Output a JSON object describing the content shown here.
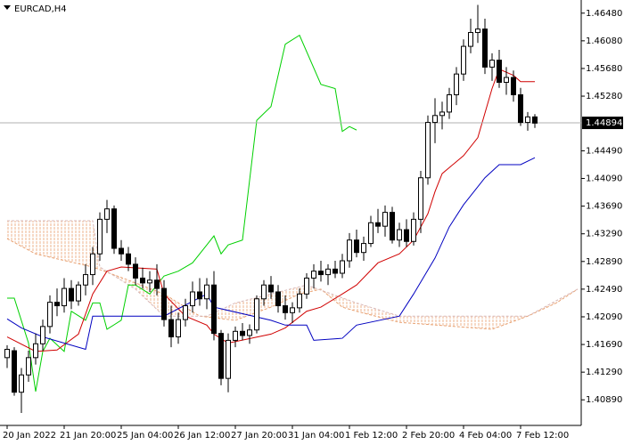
{
  "chart_data": {
    "type": "candlestick",
    "title": "EURCAD,H4",
    "ylim": [
      1.4052,
      1.4667
    ],
    "yticks": [
      {
        "value": 1.4648,
        "label": "1.46480"
      },
      {
        "value": 1.4608,
        "label": "1.46080"
      },
      {
        "value": 1.4568,
        "label": "1.45680"
      },
      {
        "value": 1.4528,
        "label": "1.45280"
      },
      {
        "value": 1.4449,
        "label": "1.44490"
      },
      {
        "value": 1.4409,
        "label": "1.44090"
      },
      {
        "value": 1.4369,
        "label": "1.43690"
      },
      {
        "value": 1.4329,
        "label": "1.43290"
      },
      {
        "value": 1.4289,
        "label": "1.42890"
      },
      {
        "value": 1.4249,
        "label": "1.42490"
      },
      {
        "value": 1.4209,
        "label": "1.42090"
      },
      {
        "value": 1.4169,
        "label": "1.41690"
      },
      {
        "value": 1.4129,
        "label": "1.41290"
      },
      {
        "value": 1.4089,
        "label": "1.40890"
      }
    ],
    "xticks": [
      {
        "value": 0,
        "label": "20 Jan 2022"
      },
      {
        "value": 8,
        "label": "21 Jan 20:00"
      },
      {
        "value": 16,
        "label": "25 Jan 04:00"
      },
      {
        "value": 24,
        "label": "26 Jan 12:00"
      },
      {
        "value": 32,
        "label": "27 Jan 20:00"
      },
      {
        "value": 40,
        "label": "31 Jan 04:00"
      },
      {
        "value": 48,
        "label": "1 Feb 12:00"
      },
      {
        "value": 56,
        "label": "2 Feb 20:00"
      },
      {
        "value": 64,
        "label": "4 Feb 04:00"
      },
      {
        "value": 72,
        "label": "7 Feb 12:00"
      }
    ],
    "last_price": {
      "value": 1.44894,
      "label": "1.44894"
    },
    "bull_color": "#ffffff",
    "bear_color": "#000000",
    "candles": {
      "open": [
        1.415,
        1.416,
        1.41,
        1.4125,
        1.415,
        1.417,
        1.4195,
        1.423,
        1.4225,
        1.425,
        1.4232,
        1.4255,
        1.427,
        1.43,
        1.435,
        1.4365,
        1.4308,
        1.43,
        1.4285,
        1.4265,
        1.4258,
        1.4262,
        1.425,
        1.4205,
        1.418,
        1.4205,
        1.4225,
        1.4245,
        1.4235,
        1.4255,
        1.4185,
        1.412,
        1.4175,
        1.4188,
        1.4182,
        1.419,
        1.4235,
        1.4255,
        1.4245,
        1.4225,
        1.4215,
        1.4222,
        1.4242,
        1.4265,
        1.4275,
        1.427,
        1.4278,
        1.4272,
        1.429,
        1.432,
        1.4302,
        1.4315,
        1.4345,
        1.434,
        1.436,
        1.432,
        1.4335,
        1.4318,
        1.435,
        1.441,
        1.449,
        1.45,
        1.4505,
        1.453,
        1.456,
        1.46,
        1.462,
        1.4625,
        1.457,
        1.458,
        1.4548,
        1.4555,
        1.453,
        1.449,
        1.4498
      ],
      "high": [
        1.4168,
        1.4165,
        1.4135,
        1.416,
        1.4185,
        1.4205,
        1.424,
        1.425,
        1.4265,
        1.4262,
        1.426,
        1.4285,
        1.431,
        1.436,
        1.4378,
        1.437,
        1.432,
        1.431,
        1.4295,
        1.428,
        1.4275,
        1.4285,
        1.4262,
        1.4225,
        1.4215,
        1.4235,
        1.426,
        1.4265,
        1.4265,
        1.4275,
        1.419,
        1.4185,
        1.4195,
        1.42,
        1.4198,
        1.424,
        1.4262,
        1.4268,
        1.4255,
        1.424,
        1.423,
        1.425,
        1.4272,
        1.4285,
        1.429,
        1.4285,
        1.429,
        1.43,
        1.433,
        1.4335,
        1.4325,
        1.4355,
        1.4365,
        1.437,
        1.4368,
        1.4345,
        1.435,
        1.436,
        1.442,
        1.45,
        1.4525,
        1.452,
        1.454,
        1.457,
        1.461,
        1.464,
        1.466,
        1.464,
        1.459,
        1.4595,
        1.457,
        1.4565,
        1.454,
        1.4505,
        1.4502
      ],
      "low": [
        1.4135,
        1.4095,
        1.407,
        1.4115,
        1.414,
        1.416,
        1.4185,
        1.421,
        1.4215,
        1.422,
        1.4225,
        1.424,
        1.4255,
        1.429,
        1.433,
        1.43,
        1.429,
        1.4275,
        1.4255,
        1.425,
        1.4245,
        1.424,
        1.4195,
        1.4165,
        1.417,
        1.4195,
        1.4215,
        1.4225,
        1.422,
        1.4175,
        1.411,
        1.41,
        1.4165,
        1.4175,
        1.417,
        1.4185,
        1.4225,
        1.4235,
        1.4215,
        1.4205,
        1.42,
        1.4215,
        1.4235,
        1.425,
        1.426,
        1.4255,
        1.4265,
        1.4265,
        1.428,
        1.4295,
        1.429,
        1.431,
        1.433,
        1.4325,
        1.4315,
        1.431,
        1.431,
        1.4312,
        1.433,
        1.44,
        1.446,
        1.448,
        1.4495,
        1.4515,
        1.455,
        1.459,
        1.4605,
        1.456,
        1.455,
        1.454,
        1.453,
        1.452,
        1.4485,
        1.4478,
        1.4482
      ],
      "close": [
        1.4162,
        1.41,
        1.4125,
        1.415,
        1.417,
        1.4195,
        1.423,
        1.4225,
        1.425,
        1.4232,
        1.4255,
        1.427,
        1.43,
        1.435,
        1.4365,
        1.4308,
        1.43,
        1.4285,
        1.4265,
        1.4258,
        1.4262,
        1.425,
        1.4205,
        1.418,
        1.4205,
        1.4225,
        1.4245,
        1.4235,
        1.4255,
        1.4185,
        1.412,
        1.4175,
        1.4188,
        1.4182,
        1.419,
        1.4235,
        1.4255,
        1.4245,
        1.4225,
        1.4215,
        1.4222,
        1.4242,
        1.4265,
        1.4275,
        1.427,
        1.4278,
        1.4272,
        1.429,
        1.432,
        1.4302,
        1.4315,
        1.4345,
        1.434,
        1.436,
        1.432,
        1.4335,
        1.4318,
        1.435,
        1.441,
        1.449,
        1.45,
        1.4505,
        1.453,
        1.456,
        1.46,
        1.462,
        1.4625,
        1.457,
        1.458,
        1.4548,
        1.4555,
        1.453,
        1.449,
        1.4498,
        1.4489
      ]
    },
    "series": [
      {
        "color": "#e8a070",
        "fill": true,
        "x": [
          0,
          4,
          12,
          17,
          22,
          27,
          32,
          37,
          41,
          44,
          47,
          49,
          55,
          68,
          73,
          77,
          80
        ],
        "values": [
          1.4322,
          1.43,
          1.4281,
          1.4262,
          1.4242,
          1.421,
          1.4204,
          1.4223,
          1.4242,
          1.4249,
          1.4223,
          1.4217,
          1.4201,
          1.4191,
          1.421,
          1.4229,
          1.4249
        ]
      },
      {
        "color": "#d8b8b8",
        "fill": true,
        "x": [
          0,
          12,
          13,
          18,
          22,
          28,
          32,
          37,
          42,
          49,
          55,
          73,
          80
        ],
        "values": [
          1.4348,
          1.4348,
          1.4281,
          1.4249,
          1.421,
          1.421,
          1.4229,
          1.4242,
          1.4255,
          1.4229,
          1.421,
          1.421,
          1.4249
        ]
      },
      {
        "color": "#00d000",
        "x": [
          0,
          1,
          3,
          4,
          5,
          6,
          8,
          9,
          11,
          12,
          13,
          14,
          16,
          17,
          18,
          20,
          22,
          24,
          26,
          28,
          29,
          30,
          31,
          33,
          35,
          37,
          39,
          41,
          44,
          46,
          47,
          48,
          49
        ],
        "values": [
          1.4236,
          1.4236,
          1.4171,
          1.4101,
          1.4159,
          1.4178,
          1.4159,
          1.4217,
          1.4204,
          1.4229,
          1.4229,
          1.4191,
          1.4204,
          1.4255,
          1.4255,
          1.4242,
          1.4268,
          1.4275,
          1.4287,
          1.4313,
          1.4326,
          1.43,
          1.4313,
          1.432,
          1.4493,
          1.4513,
          1.4603,
          1.4616,
          1.4545,
          1.4539,
          1.4477,
          1.4484,
          1.4479
        ]
      },
      {
        "color": "#d00000",
        "x": [
          0,
          4,
          7,
          10,
          12,
          14,
          16,
          21,
          22,
          25,
          28,
          29,
          31,
          37,
          39,
          42,
          44,
          47,
          49,
          52,
          55,
          57,
          59,
          60,
          61,
          64,
          66,
          68,
          69,
          71,
          72,
          74
        ],
        "values": [
          1.418,
          1.4159,
          1.4161,
          1.4184,
          1.4242,
          1.4275,
          1.4281,
          1.4278,
          1.4242,
          1.421,
          1.4197,
          1.4184,
          1.4171,
          1.4184,
          1.4193,
          1.4217,
          1.4223,
          1.4242,
          1.4255,
          1.4287,
          1.43,
          1.432,
          1.4358,
          1.439,
          1.4416,
          1.4442,
          1.4468,
          1.4539,
          1.4567,
          1.4558,
          1.4549,
          1.4549
        ]
      },
      {
        "color": "#0000c0",
        "x": [
          0,
          2,
          5,
          11,
          12,
          22,
          28,
          29,
          37,
          39,
          42,
          43,
          47,
          49,
          55,
          57,
          60,
          62,
          64,
          67,
          69,
          72,
          74
        ],
        "values": [
          1.4206,
          1.4193,
          1.418,
          1.4162,
          1.421,
          1.421,
          1.4242,
          1.4223,
          1.4204,
          1.4197,
          1.4197,
          1.4175,
          1.4178,
          1.4197,
          1.421,
          1.4242,
          1.4294,
          1.4339,
          1.4371,
          1.441,
          1.4429,
          1.4429,
          1.4439
        ]
      }
    ]
  }
}
